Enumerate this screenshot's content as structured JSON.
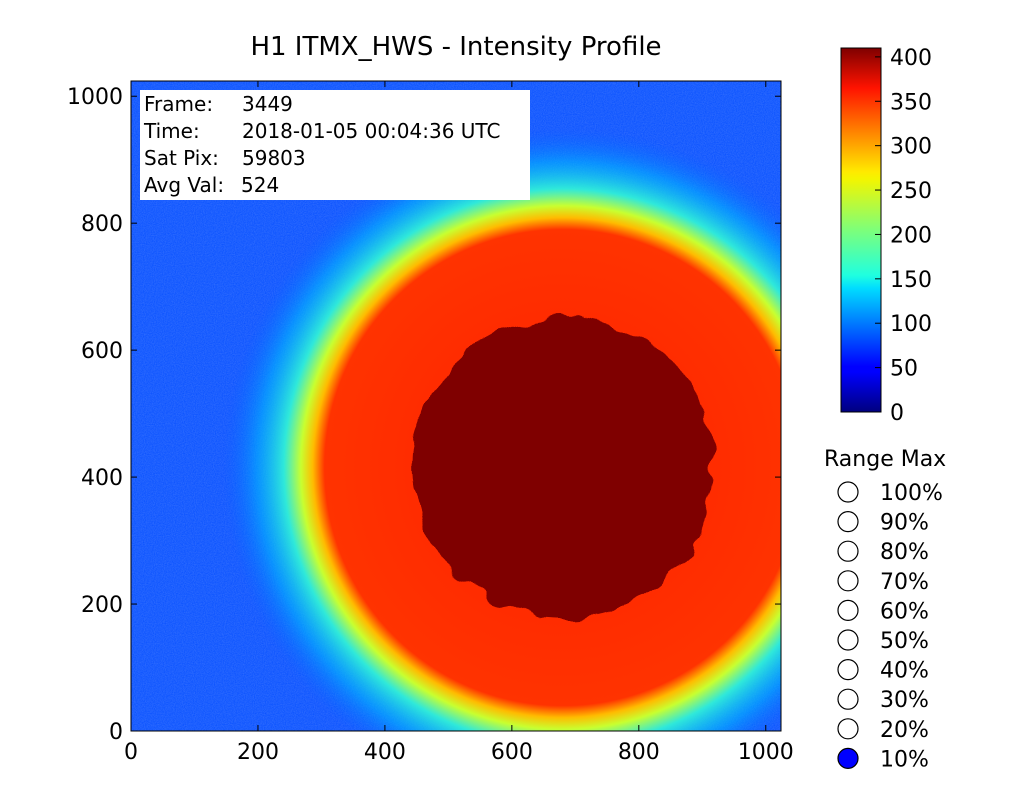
{
  "chart_data": {
    "type": "heatmap",
    "title": "H1 ITMX_HWS - Intensity Profile",
    "xlim": [
      0,
      1024
    ],
    "ylim": [
      0,
      1024
    ],
    "x_ticks": [
      "0",
      "200",
      "400",
      "600",
      "800",
      "1000"
    ],
    "y_ticks": [
      "0",
      "200",
      "400",
      "600",
      "800",
      "1000"
    ],
    "colormap": "jet",
    "colorbar": {
      "range": [
        0,
        410
      ],
      "ticks": [
        "0",
        "50",
        "100",
        "150",
        "200",
        "250",
        "300",
        "350",
        "400"
      ]
    },
    "background_value": 70,
    "saturated_blob": {
      "center": [
        680,
        415
      ],
      "radius": 238,
      "value": 410
    },
    "info": {
      "frame_label": "Frame:",
      "frame_value": "3449",
      "time_label": "Time:",
      "time_value": "2018-01-05 00:04:36 UTC",
      "satpix_label": "Sat Pix:",
      "satpix_value": "59803",
      "avgval_label": "Avg Val:",
      "avgval_value": "524"
    }
  },
  "range_control": {
    "title": "Range Max",
    "selected": "10%",
    "options": [
      "100%",
      "90%",
      "80%",
      "70%",
      "60%",
      "50%",
      "40%",
      "30%",
      "20%",
      "10%"
    ]
  }
}
